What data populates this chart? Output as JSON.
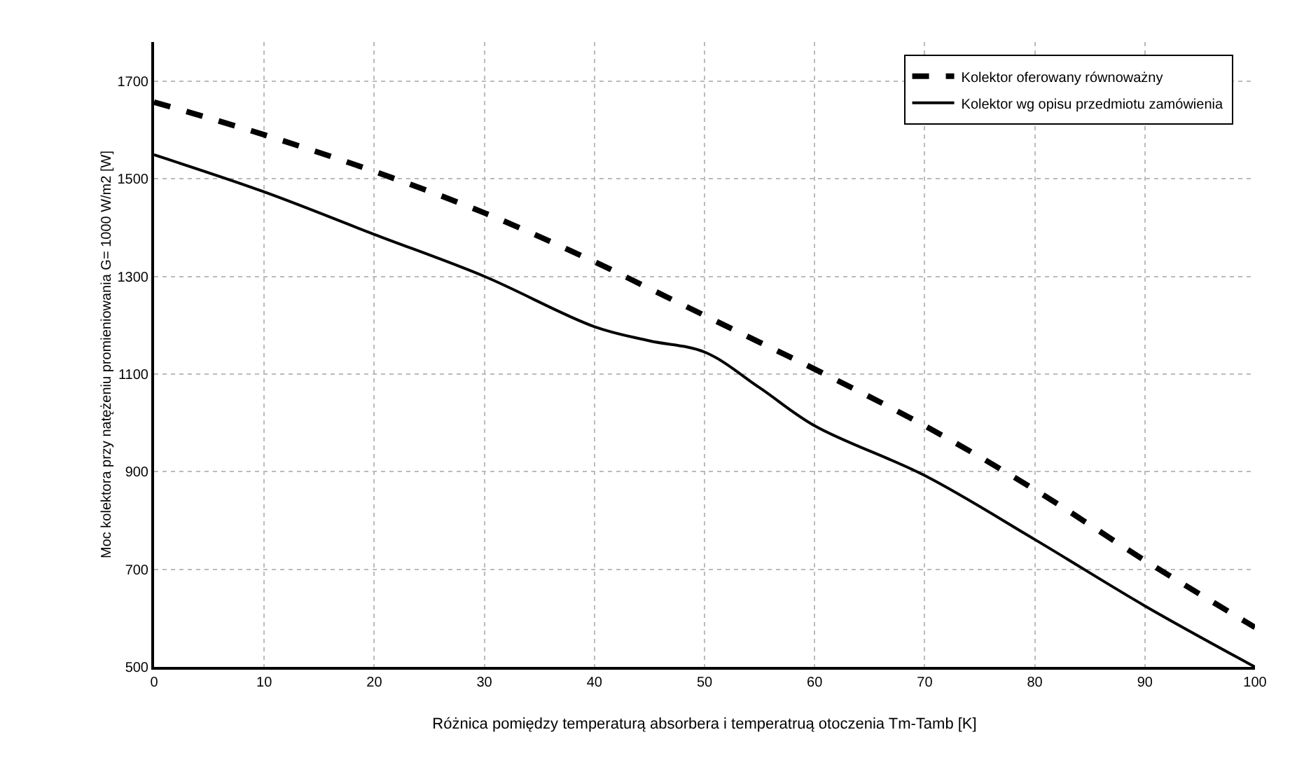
{
  "chart_data": {
    "type": "line",
    "xlabel": "Różnica pomiędzy temperaturą absorbera i temperatruą otoczenia Tm-Tamb [K]",
    "ylabel": "Moc kolektora przy natężeniu promieniowania G= 1000 W/m2 [W]",
    "x": [
      0,
      10,
      20,
      30,
      40,
      45,
      50,
      55,
      60,
      70,
      80,
      90,
      100
    ],
    "series": [
      {
        "name": "Kolektor oferowany równoważny",
        "color": "#000000",
        "line_style": "dashed",
        "values": [
          1657,
          1590,
          1515,
          1430,
          1330,
          1275,
          1220,
          1165,
          1110,
          994,
          863,
          718,
          581
        ]
      },
      {
        "name": "Kolektor wg opisu przedmiotu zamówienia",
        "color": "#000000",
        "line_style": "solid",
        "values": [
          1549,
          1473,
          1386,
          1300,
          1197,
          1168,
          1145,
          1072,
          994,
          892,
          761,
          625,
          500
        ]
      }
    ],
    "xlim": [
      0,
      100
    ],
    "xticks": [
      0,
      10,
      20,
      30,
      40,
      50,
      60,
      70,
      80,
      90,
      100
    ],
    "ylim": [
      500,
      1780
    ],
    "yticks": [
      500,
      700,
      900,
      1100,
      1300,
      1500,
      1700
    ],
    "grid": true,
    "legend": "top right",
    "marker": "none"
  }
}
